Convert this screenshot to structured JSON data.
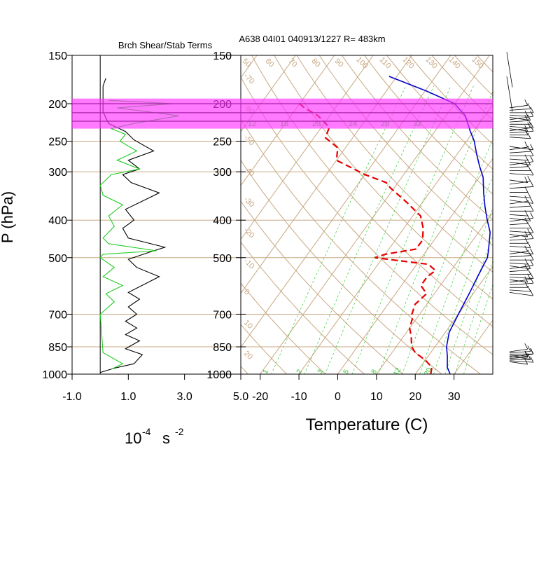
{
  "colors": {
    "grid": "#c8a882",
    "mixing_ratio": "#33cc33",
    "temperature": "#e60000",
    "dewpoint_line": "#0000cc",
    "richardson_green": "#22cc22",
    "richardson_black": "#000000",
    "highlight_band": "#ff33ff",
    "highlight_line": "#aa22aa",
    "wind_barb": "#000000"
  },
  "chart_data": [
    {
      "type": "line",
      "title": "Brch Shear/Stab Terms",
      "ylabel": "P (hPa)",
      "xlabel_base": "10",
      "xlabel_exponent": "-4",
      "xlabel_unit": "s",
      "xlabel_unit_exponent": "-2",
      "xlim": [
        -1.0,
        5.0
      ],
      "ylim": [
        1000,
        150
      ],
      "x_ticks": [
        "-1.0",
        "1.0",
        "3.0",
        "5.0"
      ],
      "y_ticks": [
        "150",
        "200",
        "250",
        "300",
        "400",
        "500",
        "700",
        "850",
        "1000"
      ],
      "series": [
        {
          "color": "black",
          "points": [
            [
              0.0,
              990
            ],
            [
              0.5,
              965
            ],
            [
              1.2,
              940
            ],
            [
              1.5,
              890
            ],
            [
              0.9,
              860
            ],
            [
              1.4,
              820
            ],
            [
              0.9,
              790
            ],
            [
              1.3,
              760
            ],
            [
              0.9,
              730
            ],
            [
              1.3,
              700
            ],
            [
              1.0,
              670
            ],
            [
              1.4,
              640
            ],
            [
              1.0,
              615
            ],
            [
              2.1,
              560
            ],
            [
              1.3,
              530
            ],
            [
              1.0,
              505
            ],
            [
              1.9,
              480
            ],
            [
              2.3,
              470
            ],
            [
              1.0,
              445
            ],
            [
              0.8,
              420
            ],
            [
              1.2,
              400
            ],
            [
              0.9,
              375
            ],
            [
              2.1,
              340
            ],
            [
              1.1,
              320
            ],
            [
              0.8,
              305
            ],
            [
              1.4,
              295
            ],
            [
              1.0,
              280
            ],
            [
              1.9,
              265
            ],
            [
              1.2,
              248
            ],
            [
              0.9,
              236
            ],
            [
              0.3,
              225
            ],
            [
              0.1,
              210
            ],
            [
              0.1,
              195
            ],
            [
              0.1,
              180
            ],
            [
              0.2,
              172
            ]
          ]
        },
        {
          "color": "green",
          "points": [
            [
              0.4,
              970
            ],
            [
              0.8,
              940
            ],
            [
              0.4,
              905
            ],
            [
              0.1,
              880
            ],
            [
              0.0,
              700
            ],
            [
              0.1,
              690
            ],
            [
              0.5,
              650
            ],
            [
              0.2,
              620
            ],
            [
              0.8,
              590
            ],
            [
              0.1,
              560
            ],
            [
              0.5,
              530
            ],
            [
              0.0,
              500
            ],
            [
              0.1,
              490
            ],
            [
              2.0,
              480
            ],
            [
              0.3,
              460
            ],
            [
              0.1,
              445
            ],
            [
              0.5,
              415
            ],
            [
              0.3,
              390
            ],
            [
              0.8,
              365
            ],
            [
              0.1,
              345
            ],
            [
              0.0,
              325
            ],
            [
              0.4,
              305
            ],
            [
              1.4,
              295
            ],
            [
              0.6,
              280
            ],
            [
              1.3,
              265
            ],
            [
              0.7,
              250
            ],
            [
              0.9,
              240
            ],
            [
              0.4,
              232
            ],
            [
              1.2,
              225
            ],
            [
              2.8,
              215
            ],
            [
              0.6,
              205
            ],
            [
              2.6,
              200
            ],
            [
              0.3,
              196
            ]
          ]
        }
      ]
    },
    {
      "type": "line",
      "title": "A638 04I01 040913/1227 R= 483km",
      "xlabel": "Temperature (C)",
      "xlim": [
        -25,
        40
      ],
      "ylim": [
        1000,
        150
      ],
      "x_ticks": [
        "-20",
        "-10",
        "0",
        "10",
        "20",
        "30"
      ],
      "y_ticks": [
        "150",
        "200",
        "250",
        "300",
        "400",
        "500",
        "700",
        "850",
        "1000"
      ],
      "isotherm_labels": [
        "20",
        "10",
        "0",
        "-10",
        "-20",
        "-30",
        "-40",
        "-50",
        "-60",
        "-70",
        "-80"
      ],
      "dry_adiabat_labels": [
        "50",
        "60",
        "70",
        "80",
        "90",
        "100",
        "110",
        "120",
        "130",
        "140",
        "150"
      ],
      "mixing_ratio_upper_labels": [
        "12",
        "16",
        "20",
        "24",
        "28",
        "32"
      ],
      "mixing_ratio_lower_labels": [
        "1",
        "2",
        "3",
        "5",
        "8",
        "12",
        "20"
      ],
      "series": [
        {
          "color": "blue",
          "style": "solid",
          "points": [
            [
              29,
              1000
            ],
            [
              27,
              960
            ],
            [
              25,
              900
            ],
            [
              23,
              850
            ],
            [
              21,
              780
            ],
            [
              20,
              700
            ],
            [
              19,
              620
            ],
            [
              18,
              560
            ],
            [
              17,
              500
            ],
            [
              16,
              480
            ],
            [
              13,
              430
            ],
            [
              10,
              400
            ],
            [
              7,
              370
            ],
            [
              4,
              340
            ],
            [
              1,
              310
            ],
            [
              -2,
              290
            ],
            [
              -5,
              270
            ],
            [
              -8,
              250
            ],
            [
              -11,
              235
            ],
            [
              -15,
              215
            ],
            [
              -20,
              200
            ],
            [
              -30,
              185
            ],
            [
              -42,
              170
            ]
          ]
        },
        {
          "color": "red",
          "style": "dashed",
          "points": [
            [
              24,
              1000
            ],
            [
              23,
              960
            ],
            [
              20,
              920
            ],
            [
              16,
              880
            ],
            [
              14,
              850
            ],
            [
              12,
              800
            ],
            [
              10,
              760
            ],
            [
              9,
              720
            ],
            [
              8,
              700
            ],
            [
              7,
              660
            ],
            [
              8,
              620
            ],
            [
              5,
              590
            ],
            [
              5,
              560
            ],
            [
              6,
              540
            ],
            [
              3,
              520
            ],
            [
              -12,
              500
            ],
            [
              -10,
              490
            ],
            [
              -3,
              475
            ],
            [
              -3,
              450
            ],
            [
              -5,
              420
            ],
            [
              -8,
              390
            ],
            [
              -14,
              360
            ],
            [
              -21,
              330
            ],
            [
              -23,
              320
            ],
            [
              -30,
              305
            ],
            [
              -40,
              280
            ],
            [
              -42,
              260
            ],
            [
              -47,
              245
            ],
            [
              -48,
              230
            ],
            [
              -53,
              215
            ],
            [
              -58,
              205
            ],
            [
              -60,
              200
            ]
          ]
        }
      ]
    }
  ]
}
